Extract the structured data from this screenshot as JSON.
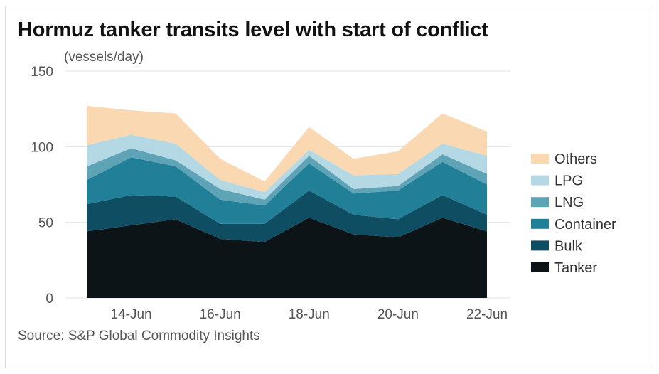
{
  "chart_data": {
    "type": "area",
    "stacked": true,
    "title": "Hormuz tanker transits level with start of conflict",
    "ylabel": "(vessels/day)",
    "xlabel": "",
    "source": "Source: S&P Global Commodity Insights",
    "x": [
      "13-Jun",
      "14-Jun",
      "15-Jun",
      "16-Jun",
      "17-Jun",
      "18-Jun",
      "19-Jun",
      "20-Jun",
      "21-Jun",
      "22-Jun"
    ],
    "x_tick_labels": [
      "14-Jun",
      "16-Jun",
      "18-Jun",
      "20-Jun",
      "22-Jun"
    ],
    "ylim": [
      0,
      150
    ],
    "y_ticks": [
      0,
      50,
      100,
      150
    ],
    "grid": true,
    "legend_position": "right",
    "series": [
      {
        "name": "Tanker",
        "color": "#0d1418",
        "values": [
          44,
          48,
          52,
          39,
          37,
          53,
          42,
          40,
          53,
          44
        ]
      },
      {
        "name": "Bulk",
        "color": "#0f4d63",
        "values": [
          18,
          20,
          15,
          10,
          12,
          18,
          13,
          12,
          15,
          11
        ]
      },
      {
        "name": "Container",
        "color": "#217f98",
        "values": [
          16,
          25,
          20,
          16,
          12,
          18,
          14,
          19,
          22,
          20
        ]
      },
      {
        "name": "LNG",
        "color": "#5fa3b7",
        "values": [
          9,
          6,
          4,
          7,
          4,
          5,
          3,
          3,
          5,
          7
        ]
      },
      {
        "name": "LPG",
        "color": "#b4d9e4",
        "values": [
          14,
          9,
          11,
          6,
          5,
          4,
          9,
          8,
          7,
          12
        ]
      },
      {
        "name": "Others",
        "color": "#fad8b2",
        "values": [
          26,
          16,
          20,
          14,
          7,
          15,
          11,
          15,
          20,
          16
        ]
      }
    ]
  }
}
